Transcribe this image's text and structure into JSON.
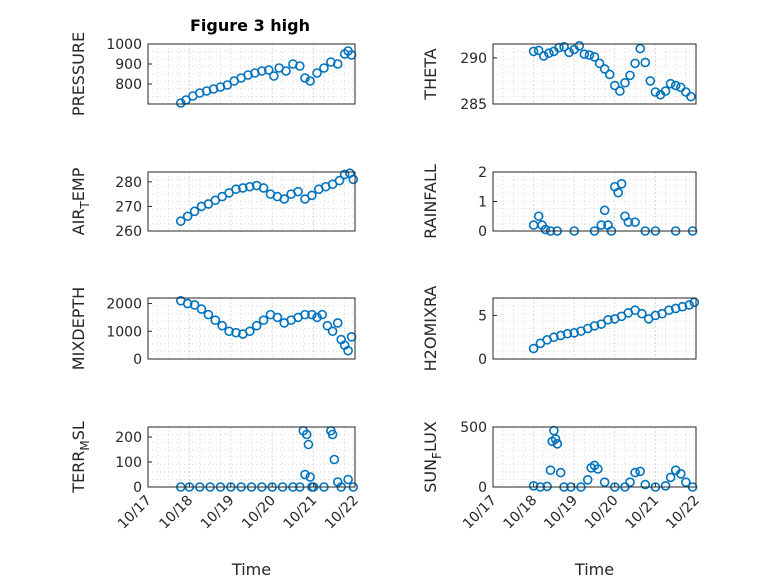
{
  "figure": {
    "title": "Figure 3 high",
    "marker_color": "#0072bd",
    "axis_color": "#262626",
    "grid_color": "#d9d9d9"
  },
  "chart_data": [
    {
      "type": "scatter",
      "title": "Figure 3 high",
      "ylabel": "PRESSURE",
      "xlabel": "",
      "xlim": [
        "10/17",
        "10/22"
      ],
      "ylim": [
        700,
        1000
      ],
      "yticks": [
        800,
        900,
        1000
      ],
      "grid": true,
      "series": [
        {
          "x": [
            "10/17 19:00",
            "10/17 22:00",
            "10/18 02:00",
            "10/18 06:00",
            "10/18 10:00",
            "10/18 14:00",
            "10/18 18:00",
            "10/18 22:00",
            "10/19 02:00",
            "10/19 06:00",
            "10/19 10:00",
            "10/19 14:00",
            "10/19 18:00",
            "10/19 22:00",
            "10/20 01:00",
            "10/20 04:00",
            "10/20 08:00",
            "10/20 12:00",
            "10/20 16:00",
            "10/20 19:00",
            "10/20 22:00",
            "10/21 02:00",
            "10/21 06:00",
            "10/21 10:00",
            "10/21 14:00",
            "10/21 18:00",
            "10/21 20:00",
            "10/21 22:00"
          ],
          "y": [
            705,
            720,
            740,
            755,
            765,
            775,
            785,
            795,
            815,
            830,
            845,
            855,
            865,
            870,
            840,
            880,
            865,
            900,
            890,
            830,
            815,
            855,
            880,
            910,
            900,
            950,
            965,
            945
          ]
        }
      ]
    },
    {
      "type": "scatter",
      "title": "",
      "ylabel": "THETA",
      "xlabel": "",
      "xlim": [
        "10/17",
        "10/22"
      ],
      "ylim": [
        285,
        291.5
      ],
      "yticks": [
        285,
        290
      ],
      "grid": true,
      "series": [
        {
          "x": [
            "10/18 00:00",
            "10/18 03:00",
            "10/18 06:00",
            "10/18 09:00",
            "10/18 12:00",
            "10/18 15:00",
            "10/18 18:00",
            "10/18 21:00",
            "10/19 00:00",
            "10/19 03:00",
            "10/19 06:00",
            "10/19 09:00",
            "10/19 12:00",
            "10/19 15:00",
            "10/19 18:00",
            "10/19 21:00",
            "10/20 00:00",
            "10/20 03:00",
            "10/20 06:00",
            "10/20 09:00",
            "10/20 12:00",
            "10/20 15:00",
            "10/20 18:00",
            "10/20 21:00",
            "10/21 00:00",
            "10/21 03:00",
            "10/21 06:00",
            "10/21 09:00",
            "10/21 12:00",
            "10/21 15:00",
            "10/21 18:00",
            "10/21 21:00"
          ],
          "y": [
            290.7,
            290.8,
            290.2,
            290.5,
            290.7,
            291.1,
            291.2,
            290.6,
            290.9,
            291.3,
            290.4,
            290.3,
            290.1,
            289.4,
            288.8,
            288.2,
            287.0,
            286.4,
            287.3,
            288.1,
            289.4,
            291.0,
            289.5,
            287.5,
            286.3,
            286.0,
            286.4,
            287.2,
            287.0,
            286.8,
            286.3,
            285.8
          ]
        }
      ]
    },
    {
      "type": "scatter",
      "title": "",
      "ylabel": "AIR_TEMP",
      "xlabel": "",
      "xlim": [
        "10/17",
        "10/22"
      ],
      "ylim": [
        260,
        284
      ],
      "yticks": [
        260,
        270,
        280
      ],
      "grid": true,
      "series": [
        {
          "x": [
            "10/17 19:00",
            "10/17 23:00",
            "10/18 03:00",
            "10/18 07:00",
            "10/18 11:00",
            "10/18 15:00",
            "10/18 19:00",
            "10/18 23:00",
            "10/19 03:00",
            "10/19 07:00",
            "10/19 11:00",
            "10/19 15:00",
            "10/19 19:00",
            "10/19 23:00",
            "10/20 03:00",
            "10/20 07:00",
            "10/20 11:00",
            "10/20 15:00",
            "10/20 19:00",
            "10/20 23:00",
            "10/21 03:00",
            "10/21 07:00",
            "10/21 11:00",
            "10/21 15:00",
            "10/21 18:00",
            "10/21 21:00",
            "10/21 23:00"
          ],
          "y": [
            264,
            266,
            268,
            270,
            271,
            272.5,
            274,
            275.5,
            277,
            277.5,
            278,
            278.5,
            277.5,
            275,
            274,
            273,
            275,
            276,
            273,
            274.5,
            277,
            278,
            279,
            280.5,
            283,
            283.5,
            281
          ]
        }
      ]
    },
    {
      "type": "scatter",
      "title": "",
      "ylabel": "RAINFALL",
      "xlabel": "",
      "xlim": [
        "10/17",
        "10/22"
      ],
      "ylim": [
        0,
        2
      ],
      "yticks": [
        0,
        1,
        2
      ],
      "grid": true,
      "series": [
        {
          "x": [
            "10/18 00:00",
            "10/18 03:00",
            "10/18 05:00",
            "10/18 07:00",
            "10/18 10:00",
            "10/18 14:00",
            "10/19 00:00",
            "10/19 12:00",
            "10/19 16:00",
            "10/19 18:00",
            "10/19 20:00",
            "10/19 22:00",
            "10/20 00:00",
            "10/20 02:00",
            "10/20 04:00",
            "10/20 06:00",
            "10/20 08:00",
            "10/20 12:00",
            "10/20 18:00",
            "10/21 00:00",
            "10/21 12:00",
            "10/21 22:00"
          ],
          "y": [
            0.2,
            0.5,
            0.2,
            0.05,
            0,
            0,
            0,
            0,
            0.2,
            0.7,
            0.2,
            0,
            1.5,
            1.3,
            1.6,
            0.5,
            0.3,
            0.3,
            0,
            0,
            0,
            0
          ]
        }
      ]
    },
    {
      "type": "scatter",
      "title": "",
      "ylabel": "MIXDEPTH",
      "xlabel": "",
      "xlim": [
        "10/17",
        "10/22"
      ],
      "ylim": [
        0,
        2200
      ],
      "yticks": [
        0,
        1000,
        2000
      ],
      "grid": true,
      "series": [
        {
          "x": [
            "10/17 19:00",
            "10/17 23:00",
            "10/18 03:00",
            "10/18 07:00",
            "10/18 11:00",
            "10/18 15:00",
            "10/18 19:00",
            "10/18 23:00",
            "10/19 03:00",
            "10/19 07:00",
            "10/19 11:00",
            "10/19 15:00",
            "10/19 19:00",
            "10/19 23:00",
            "10/20 03:00",
            "10/20 07:00",
            "10/20 11:00",
            "10/20 15:00",
            "10/20 19:00",
            "10/20 23:00",
            "10/21 02:00",
            "10/21 05:00",
            "10/21 08:00",
            "10/21 11:00",
            "10/21 14:00",
            "10/21 16:00",
            "10/21 18:00",
            "10/21 20:00",
            "10/21 22:00"
          ],
          "y": [
            2100,
            2000,
            1950,
            1800,
            1600,
            1400,
            1200,
            1000,
            950,
            900,
            1000,
            1200,
            1400,
            1600,
            1500,
            1300,
            1400,
            1500,
            1600,
            1600,
            1500,
            1600,
            1200,
            1000,
            1300,
            700,
            500,
            300,
            800
          ]
        }
      ]
    },
    {
      "type": "scatter",
      "title": "",
      "ylabel": "H2OMIXRA",
      "xlabel": "",
      "xlim": [
        "10/17",
        "10/22"
      ],
      "ylim": [
        0,
        7
      ],
      "yticks": [
        0,
        5
      ],
      "grid": true,
      "series": [
        {
          "x": [
            "10/18 00:00",
            "10/18 04:00",
            "10/18 08:00",
            "10/18 12:00",
            "10/18 16:00",
            "10/18 20:00",
            "10/19 00:00",
            "10/19 04:00",
            "10/19 08:00",
            "10/19 12:00",
            "10/19 16:00",
            "10/19 20:00",
            "10/20 00:00",
            "10/20 04:00",
            "10/20 08:00",
            "10/20 12:00",
            "10/20 16:00",
            "10/20 20:00",
            "10/21 00:00",
            "10/21 04:00",
            "10/21 08:00",
            "10/21 12:00",
            "10/21 16:00",
            "10/21 20:00",
            "10/21 23:00"
          ],
          "y": [
            1.2,
            1.8,
            2.2,
            2.5,
            2.7,
            2.9,
            3.0,
            3.2,
            3.5,
            3.8,
            4.0,
            4.5,
            4.6,
            4.9,
            5.3,
            5.6,
            5.2,
            4.6,
            5.0,
            5.2,
            5.6,
            5.8,
            6.0,
            6.2,
            6.5
          ]
        }
      ]
    },
    {
      "type": "scatter",
      "title": "",
      "ylabel": "TERR_MSL",
      "xlabel": "Time",
      "xlim": [
        "10/17",
        "10/22"
      ],
      "ylim": [
        0,
        240
      ],
      "yticks": [
        0,
        100,
        200
      ],
      "xticks": [
        "10/17",
        "10/18",
        "10/19",
        "10/20",
        "10/21",
        "10/22"
      ],
      "grid": true,
      "series": [
        {
          "x": [
            "10/17 19:00",
            "10/18 00:00",
            "10/18 06:00",
            "10/18 12:00",
            "10/18 18:00",
            "10/19 00:00",
            "10/19 06:00",
            "10/19 12:00",
            "10/19 18:00",
            "10/20 00:00",
            "10/20 06:00",
            "10/20 12:00",
            "10/20 16:00",
            "10/20 18:00",
            "10/20 19:00",
            "10/20 20:00",
            "10/20 21:00",
            "10/20 22:00",
            "10/20 23:00",
            "10/21 00:00",
            "10/21 06:00",
            "10/21 10:00",
            "10/21 11:00",
            "10/21 12:00",
            "10/21 14:00",
            "10/21 16:00",
            "10/21 20:00",
            "10/21 23:00"
          ],
          "y": [
            0,
            0,
            0,
            0,
            0,
            0,
            0,
            0,
            0,
            0,
            0,
            0,
            0,
            225,
            50,
            210,
            170,
            40,
            0,
            0,
            0,
            225,
            210,
            110,
            20,
            0,
            30,
            0
          ]
        }
      ]
    },
    {
      "type": "scatter",
      "title": "",
      "ylabel": "SUN_FLUX",
      "xlabel": "Time",
      "xlim": [
        "10/17",
        "10/22"
      ],
      "ylim": [
        0,
        500
      ],
      "yticks": [
        0,
        500
      ],
      "xticks": [
        "10/17",
        "10/18",
        "10/19",
        "10/20",
        "10/21",
        "10/22"
      ],
      "grid": true,
      "series": [
        {
          "x": [
            "10/18 00:00",
            "10/18 04:00",
            "10/18 08:00",
            "10/18 10:00",
            "10/18 11:00",
            "10/18 12:00",
            "10/18 13:00",
            "10/18 14:00",
            "10/18 16:00",
            "10/18 18:00",
            "10/18 22:00",
            "10/19 04:00",
            "10/19 08:00",
            "10/19 10:00",
            "10/19 12:00",
            "10/19 14:00",
            "10/19 18:00",
            "10/20 00:00",
            "10/20 06:00",
            "10/20 09:00",
            "10/20 12:00",
            "10/20 15:00",
            "10/20 18:00",
            "10/21 00:00",
            "10/21 06:00",
            "10/21 09:00",
            "10/21 12:00",
            "10/21 15:00",
            "10/21 18:00",
            "10/21 22:00"
          ],
          "y": [
            10,
            0,
            5,
            140,
            380,
            470,
            400,
            360,
            120,
            0,
            0,
            0,
            60,
            160,
            180,
            150,
            40,
            0,
            0,
            40,
            120,
            130,
            20,
            0,
            10,
            80,
            140,
            110,
            40,
            0
          ]
        }
      ]
    }
  ]
}
